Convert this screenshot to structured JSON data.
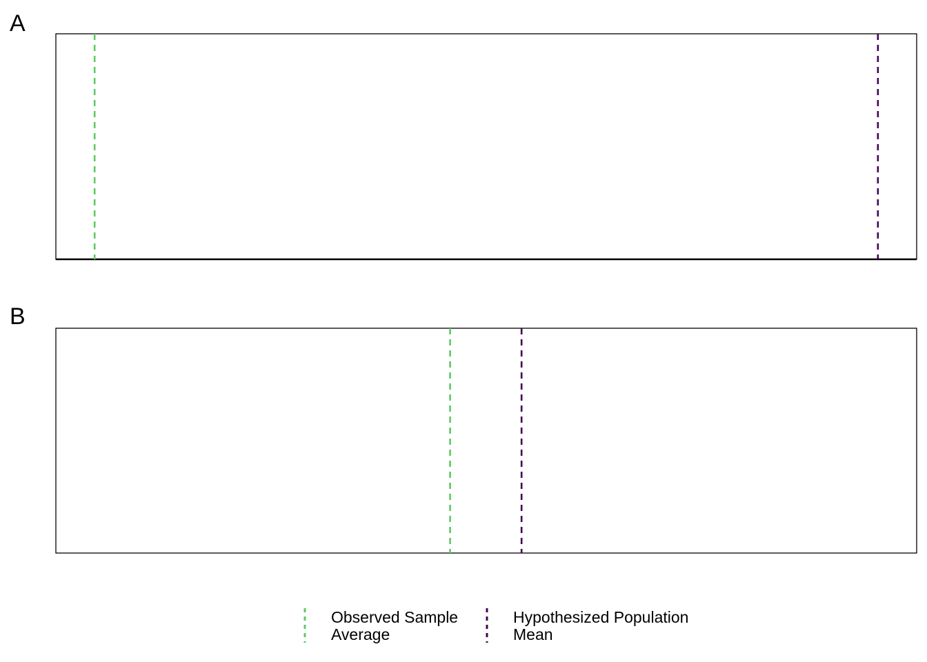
{
  "chart_data": [
    {
      "panel": "A",
      "type": "line",
      "xlim": [
        0,
        100
      ],
      "ylim": [
        0,
        1
      ],
      "grid": false,
      "axis_lines": "frame top/left/right, heavy bottom",
      "vlines": [
        {
          "series": "observed",
          "x": 4.5
        },
        {
          "series": "hypothesized",
          "x": 95.5
        }
      ]
    },
    {
      "panel": "B",
      "type": "line",
      "xlim": [
        0,
        100
      ],
      "ylim": [
        0,
        1
      ],
      "grid": false,
      "axis_lines": "full frame",
      "vlines": [
        {
          "series": "observed",
          "x": 45.8
        },
        {
          "series": "hypothesized",
          "x": 54.1
        }
      ]
    }
  ],
  "series": {
    "observed": {
      "color": "#5ec962",
      "dash": "dashed"
    },
    "hypothesized": {
      "color": "#440154",
      "dash": "dashed"
    }
  },
  "legend": {
    "placement": "bottom",
    "items": [
      {
        "key": "observed",
        "lines": [
          "Observed Sample",
          "Average"
        ]
      },
      {
        "key": "hypothesized",
        "lines": [
          "Hypothesized Population",
          "Mean"
        ]
      }
    ]
  }
}
